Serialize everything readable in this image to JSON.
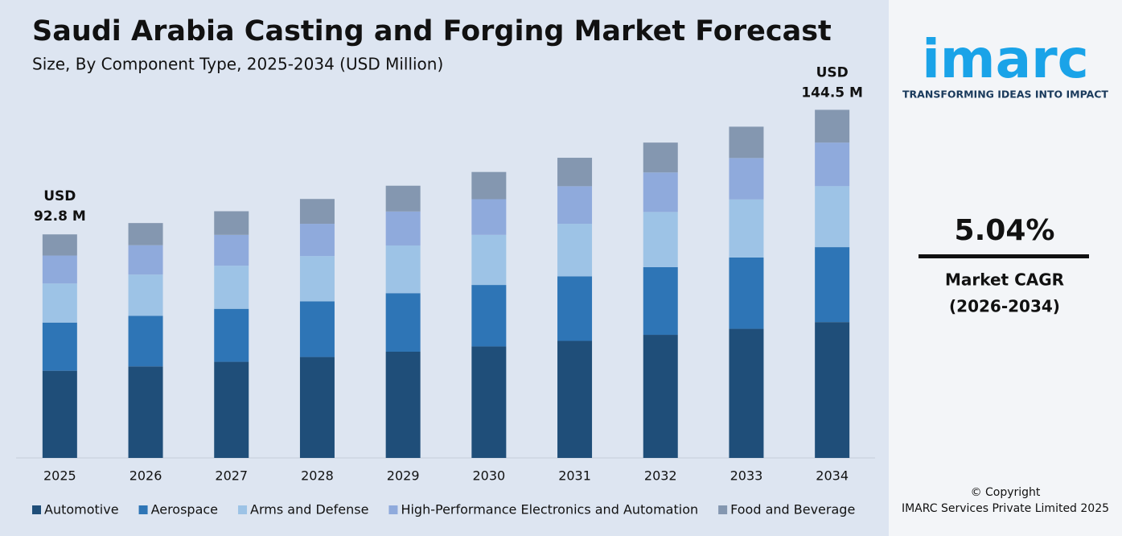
{
  "chart_data": {
    "type": "stacked-bar",
    "title": "Saudi Arabia Casting and Forging Market Forecast",
    "subtitle": "Size, By Component Type, 2025-2034 (USD Million)",
    "categories": [
      "2025",
      "2026",
      "2027",
      "2028",
      "2029",
      "2030",
      "2031",
      "2032",
      "2033",
      "2034"
    ],
    "series": [
      {
        "name": "Automotive",
        "color": "#1f4e79",
        "values": [
          36.2,
          38.0,
          39.9,
          41.9,
          44.1,
          46.3,
          48.6,
          51.1,
          53.6,
          56.4
        ]
      },
      {
        "name": "Aerospace",
        "color": "#2e75b6",
        "values": [
          20.0,
          21.0,
          22.0,
          23.1,
          24.3,
          25.5,
          26.8,
          28.1,
          29.6,
          31.1
        ]
      },
      {
        "name": "Arms and Defense",
        "color": "#9dc3e6",
        "values": [
          16.2,
          17.1,
          17.9,
          18.8,
          19.8,
          20.8,
          21.8,
          22.9,
          24.1,
          25.3
        ]
      },
      {
        "name": "High-Performance Electronics and Automation",
        "color": "#8faadc",
        "values": [
          11.6,
          12.2,
          12.8,
          13.4,
          14.1,
          14.8,
          15.6,
          16.4,
          17.2,
          18.1
        ]
      },
      {
        "name": "Food and Beverage",
        "color": "#8497b0",
        "values": [
          8.8,
          9.2,
          9.8,
          10.3,
          10.7,
          11.3,
          11.8,
          12.4,
          13.0,
          13.6
        ]
      }
    ],
    "ylim": [
      0,
      150
    ],
    "annotations": [
      {
        "category": "2025",
        "lines": [
          "USD",
          "92.8 M"
        ]
      },
      {
        "category": "2034",
        "lines": [
          "USD",
          "144.5 M"
        ]
      }
    ],
    "legend": "bottom"
  },
  "branding": {
    "logo": "imarc",
    "tagline": "TRANSFORMING IDEAS INTO IMPACT",
    "cagr": "5.04%",
    "cagr_label": "Market CAGR",
    "cagr_period": "(2026-2034)",
    "copyright": "© Copyright",
    "owner": "IMARC Services Private Limited 2025"
  }
}
